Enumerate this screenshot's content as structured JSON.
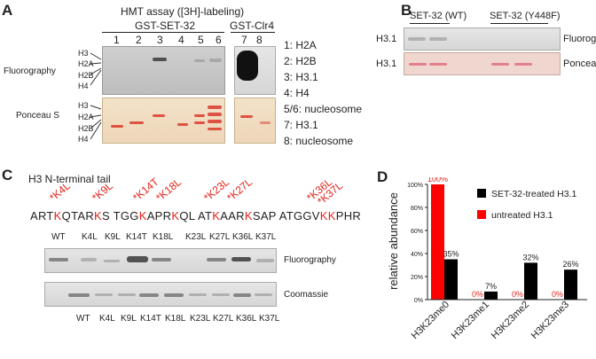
{
  "panelA": {
    "letter": "A",
    "title": "HMT assay ([3H]-labeling)",
    "group1": "GST-SET-32",
    "group2": "GST-Clr4",
    "lanes": [
      "1",
      "2",
      "3",
      "4",
      "5",
      "6",
      "7",
      "8"
    ],
    "row_labels": [
      "Fluorography",
      "Ponceau S"
    ],
    "histones": [
      "H3",
      "H2A",
      "H2B",
      "H4"
    ],
    "legend": [
      "1: H2A",
      "2: H2B",
      "3: H3.1",
      "4: H4",
      "5/6: nucleosome",
      "7: H3.1",
      "8: nucleosome"
    ]
  },
  "panelB": {
    "letter": "B",
    "col1": "SET-32 (WT)",
    "col2": "SET-32 (Y448F)",
    "rows": [
      {
        "left": "H3.1",
        "right": "Fluorography"
      },
      {
        "left": "H3.1",
        "right": "Ponceau S"
      }
    ]
  },
  "panelC": {
    "letter": "C",
    "title": "H3 N-terminal tail",
    "mutations": [
      "*K4L",
      "*K9L",
      "*K14T",
      "*K18L",
      "*K23L",
      "*K27L",
      "*K36L",
      "*K37L"
    ],
    "sequence": [
      {
        "t": "ART",
        "r": false
      },
      {
        "t": "K",
        "r": true
      },
      {
        "t": "QTAR",
        "r": false
      },
      {
        "t": "K",
        "r": true
      },
      {
        "t": "S TGG",
        "r": false
      },
      {
        "t": "K",
        "r": true
      },
      {
        "t": "APR",
        "r": false
      },
      {
        "t": "K",
        "r": true
      },
      {
        "t": "QL AT",
        "r": false
      },
      {
        "t": "K",
        "r": true
      },
      {
        "t": "AAR",
        "r": false
      },
      {
        "t": "K",
        "r": true
      },
      {
        "t": "SAP ATGGV",
        "r": false
      },
      {
        "t": "KK",
        "r": true
      },
      {
        "t": "PHR",
        "r": false
      }
    ],
    "lanes": [
      "WT",
      "K4L",
      "K9L",
      "K14T",
      "K18L",
      "K23L",
      "K27L",
      "K36L",
      "K37L"
    ],
    "row_labels": [
      "Fluorography",
      "Coomassie"
    ]
  },
  "panelD": {
    "letter": "D",
    "ylabel": "relative abundance",
    "legend": [
      "SET-32-treated H3.1",
      "untreated H3.1"
    ],
    "colors": {
      "treated": "#000000",
      "untreated": "#ff0000"
    }
  },
  "chart_data": {
    "type": "bar",
    "categories": [
      "H3K23me0",
      "H3K23me1",
      "H3K23me2",
      "H3K23me3"
    ],
    "series": [
      {
        "name": "untreated H3.1",
        "values": [
          100,
          0,
          0,
          0
        ],
        "labels": [
          "100%",
          "0%",
          "0%",
          "0%"
        ]
      },
      {
        "name": "SET-32-treated H3.1",
        "values": [
          35,
          7,
          32,
          26
        ],
        "labels": [
          "35%",
          "7%",
          "32%",
          "26%"
        ]
      }
    ],
    "yticks": [
      "0%",
      "20%",
      "40%",
      "60%",
      "80%",
      "100%"
    ],
    "ylim": [
      0,
      100
    ],
    "ylabel": "relative abundance"
  }
}
